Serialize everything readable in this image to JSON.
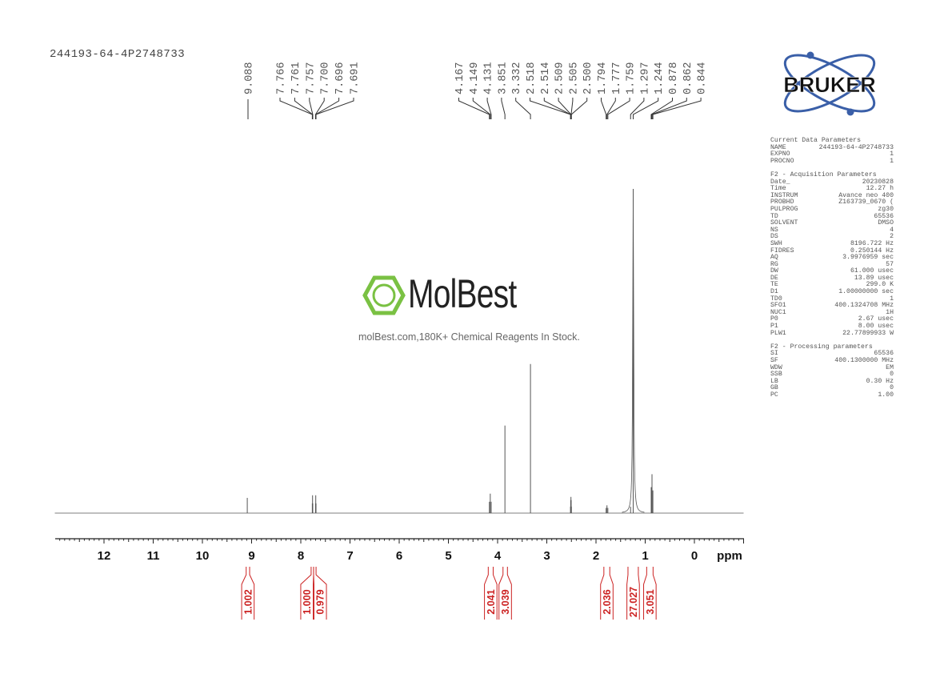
{
  "sample_title": "244193-64-4P2748733",
  "watermark": {
    "brand": "MolBest",
    "tagline": "molBest.com,180K+ Chemical Reagents In Stock.",
    "color": "#7ac143"
  },
  "logo": {
    "text": "BRUKER",
    "orbit_color": "#3a5fa8"
  },
  "parameters": {
    "sections": [
      {
        "title": "Current Data Parameters",
        "rows": [
          [
            "NAME",
            "244193-64-4P2748733"
          ],
          [
            "EXPNO",
            "1"
          ],
          [
            "PROCNO",
            "1"
          ]
        ]
      },
      {
        "title": "F2 - Acquisition Parameters",
        "rows": [
          [
            "Date_",
            "20230828"
          ],
          [
            "Time",
            "12.27 h"
          ],
          [
            "INSTRUM",
            "Avance neo 400"
          ],
          [
            "PROBHD",
            "Z163739_0670 ("
          ],
          [
            "PULPROG",
            "zg30"
          ],
          [
            "TD",
            "65536"
          ],
          [
            "SOLVENT",
            "DMSO"
          ],
          [
            "NS",
            "4"
          ],
          [
            "DS",
            "2"
          ],
          [
            "SWH",
            "8196.722 Hz"
          ],
          [
            "FIDRES",
            "0.250144 Hz"
          ],
          [
            "AQ",
            "3.9976959 sec"
          ],
          [
            "RG",
            "57"
          ],
          [
            "DW",
            "61.000 usec"
          ],
          [
            "DE",
            "13.89 usec"
          ],
          [
            "TE",
            "299.0 K"
          ],
          [
            "D1",
            "1.00000000 sec"
          ],
          [
            "TD0",
            "1"
          ],
          [
            "SFO1",
            "400.1324708 MHz"
          ],
          [
            "NUC1",
            "1H"
          ],
          [
            "P0",
            "2.67 usec"
          ],
          [
            "P1",
            "8.00 usec"
          ],
          [
            "PLW1",
            "22.77899933 W"
          ]
        ]
      },
      {
        "title": "F2 - Processing parameters",
        "rows": [
          [
            "SI",
            "65536"
          ],
          [
            "SF",
            "400.1300000 MHz"
          ],
          [
            "WDW",
            "EM"
          ],
          [
            "SSB",
            "0"
          ],
          [
            "LB",
            "0.30 Hz"
          ],
          [
            "GB",
            "0"
          ],
          [
            "PC",
            "1.00"
          ]
        ]
      }
    ]
  },
  "chart_data": {
    "type": "line",
    "subtype": "1H NMR spectrum",
    "xlabel": "ppm",
    "xlim": [
      13,
      -1
    ],
    "x_reversed": true,
    "x_ticks": [
      "12",
      "11",
      "10",
      "9",
      "8",
      "7",
      "6",
      "5",
      "4",
      "3",
      "2",
      "1",
      "0"
    ],
    "grid": false,
    "line_color": "#555555",
    "integral_color": "#cc2222",
    "peaks": [
      {
        "ppm": 9.088,
        "intensity": 4.7
      },
      {
        "ppm": 7.766,
        "intensity": 3.0
      },
      {
        "ppm": 7.761,
        "intensity": 5.5
      },
      {
        "ppm": 7.757,
        "intensity": 3.0
      },
      {
        "ppm": 7.7,
        "intensity": 3.0
      },
      {
        "ppm": 7.696,
        "intensity": 5.5
      },
      {
        "ppm": 7.691,
        "intensity": 3.0
      },
      {
        "ppm": 4.167,
        "intensity": 3.5
      },
      {
        "ppm": 4.149,
        "intensity": 6.0
      },
      {
        "ppm": 4.131,
        "intensity": 3.5
      },
      {
        "ppm": 3.851,
        "intensity": 27.0
      },
      {
        "ppm": 3.332,
        "intensity": 46.0
      },
      {
        "ppm": 2.518,
        "intensity": 2.0
      },
      {
        "ppm": 2.514,
        "intensity": 4.0
      },
      {
        "ppm": 2.509,
        "intensity": 5.0
      },
      {
        "ppm": 2.505,
        "intensity": 4.0
      },
      {
        "ppm": 2.5,
        "intensity": 2.0
      },
      {
        "ppm": 1.794,
        "intensity": 1.6
      },
      {
        "ppm": 1.777,
        "intensity": 2.4
      },
      {
        "ppm": 1.759,
        "intensity": 1.6
      },
      {
        "ppm": 1.297,
        "intensity": 2.0
      },
      {
        "ppm": 1.244,
        "intensity": 100.0
      },
      {
        "ppm": 0.878,
        "intensity": 8.0
      },
      {
        "ppm": 0.862,
        "intensity": 12.0
      },
      {
        "ppm": 0.844,
        "intensity": 7.0
      }
    ],
    "peak_labels": [
      {
        "group": [
          "9.088"
        ]
      },
      {
        "group": [
          "7.766",
          "7.761",
          "7.757",
          "7.700",
          "7.696",
          "7.691"
        ]
      },
      {
        "group": [
          "4.167",
          "4.149",
          "4.131",
          "3.851",
          "3.332",
          "2.518",
          "2.514",
          "2.509",
          "2.505",
          "2.500",
          "1.794",
          "1.777",
          "1.759",
          "1.297",
          "1.244",
          "0.878",
          "0.862",
          "0.844"
        ]
      }
    ],
    "integrals": [
      {
        "value": "1.002",
        "from": 9.11,
        "to": 9.04
      },
      {
        "value": "1.000",
        "from": 7.79,
        "to": 7.74
      },
      {
        "value": "0.979",
        "from": 7.74,
        "to": 7.69
      },
      {
        "value": "2.041",
        "from": 4.19,
        "to": 4.09
      },
      {
        "value": "3.039",
        "from": 3.89,
        "to": 3.8
      },
      {
        "value": "2.036",
        "from": 1.84,
        "to": 1.72
      },
      {
        "value": "27.027",
        "from": 1.35,
        "to": 1.14
      },
      {
        "value": "3.051",
        "from": 0.97,
        "to": 0.84
      }
    ]
  }
}
